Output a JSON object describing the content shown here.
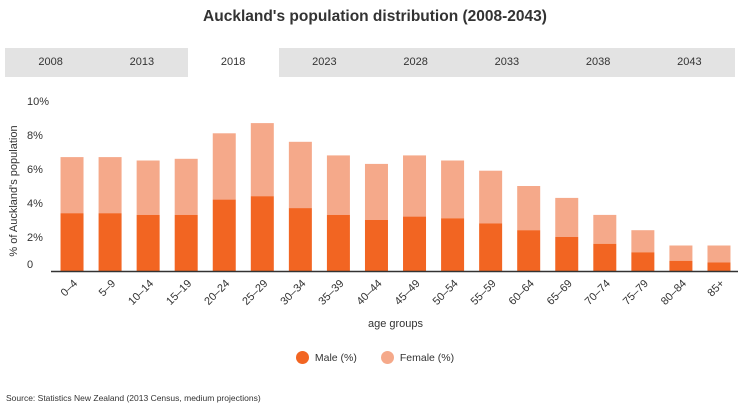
{
  "page": {
    "title": "Auckland's population distribution (2008-2043)",
    "source": "Source: Statistics New Zealand (2013 Census, medium projections)"
  },
  "tabs": [
    {
      "label": "2008",
      "active": false
    },
    {
      "label": "2013",
      "active": false
    },
    {
      "label": "2018",
      "active": true
    },
    {
      "label": "2023",
      "active": false
    },
    {
      "label": "2028",
      "active": false
    },
    {
      "label": "2033",
      "active": false
    },
    {
      "label": "2038",
      "active": false
    },
    {
      "label": "2043",
      "active": false
    }
  ],
  "colors": {
    "male": "#f26522",
    "female": "#f5a98a",
    "axis": "#333333",
    "tab_bg": "#e3e3e3"
  },
  "chart_data": {
    "type": "bar",
    "stacked": true,
    "xlabel": "age groups",
    "ylabel": "% of Auckland's population",
    "ylim": [
      0,
      10
    ],
    "yticks": [
      "0",
      "2%",
      "4%",
      "6%",
      "8%",
      "10%"
    ],
    "categories": [
      "0–4",
      "5–9",
      "10–14",
      "15–19",
      "20–24",
      "25–29",
      "30–34",
      "35–39",
      "40–44",
      "45–49",
      "50–54",
      "55–59",
      "60–64",
      "65–69",
      "70–74",
      "75–79",
      "80–84",
      "85+"
    ],
    "series": [
      {
        "name": "Male (%)",
        "values": [
          3.4,
          3.4,
          3.3,
          3.3,
          4.2,
          4.4,
          3.7,
          3.3,
          3.0,
          3.2,
          3.1,
          2.8,
          2.4,
          2.0,
          1.6,
          1.1,
          0.6,
          0.5
        ]
      },
      {
        "name": "Female (%)",
        "values": [
          3.3,
          3.3,
          3.2,
          3.3,
          3.9,
          4.3,
          3.9,
          3.5,
          3.3,
          3.6,
          3.4,
          3.1,
          2.6,
          2.3,
          1.7,
          1.3,
          0.9,
          1.0
        ]
      }
    ]
  }
}
